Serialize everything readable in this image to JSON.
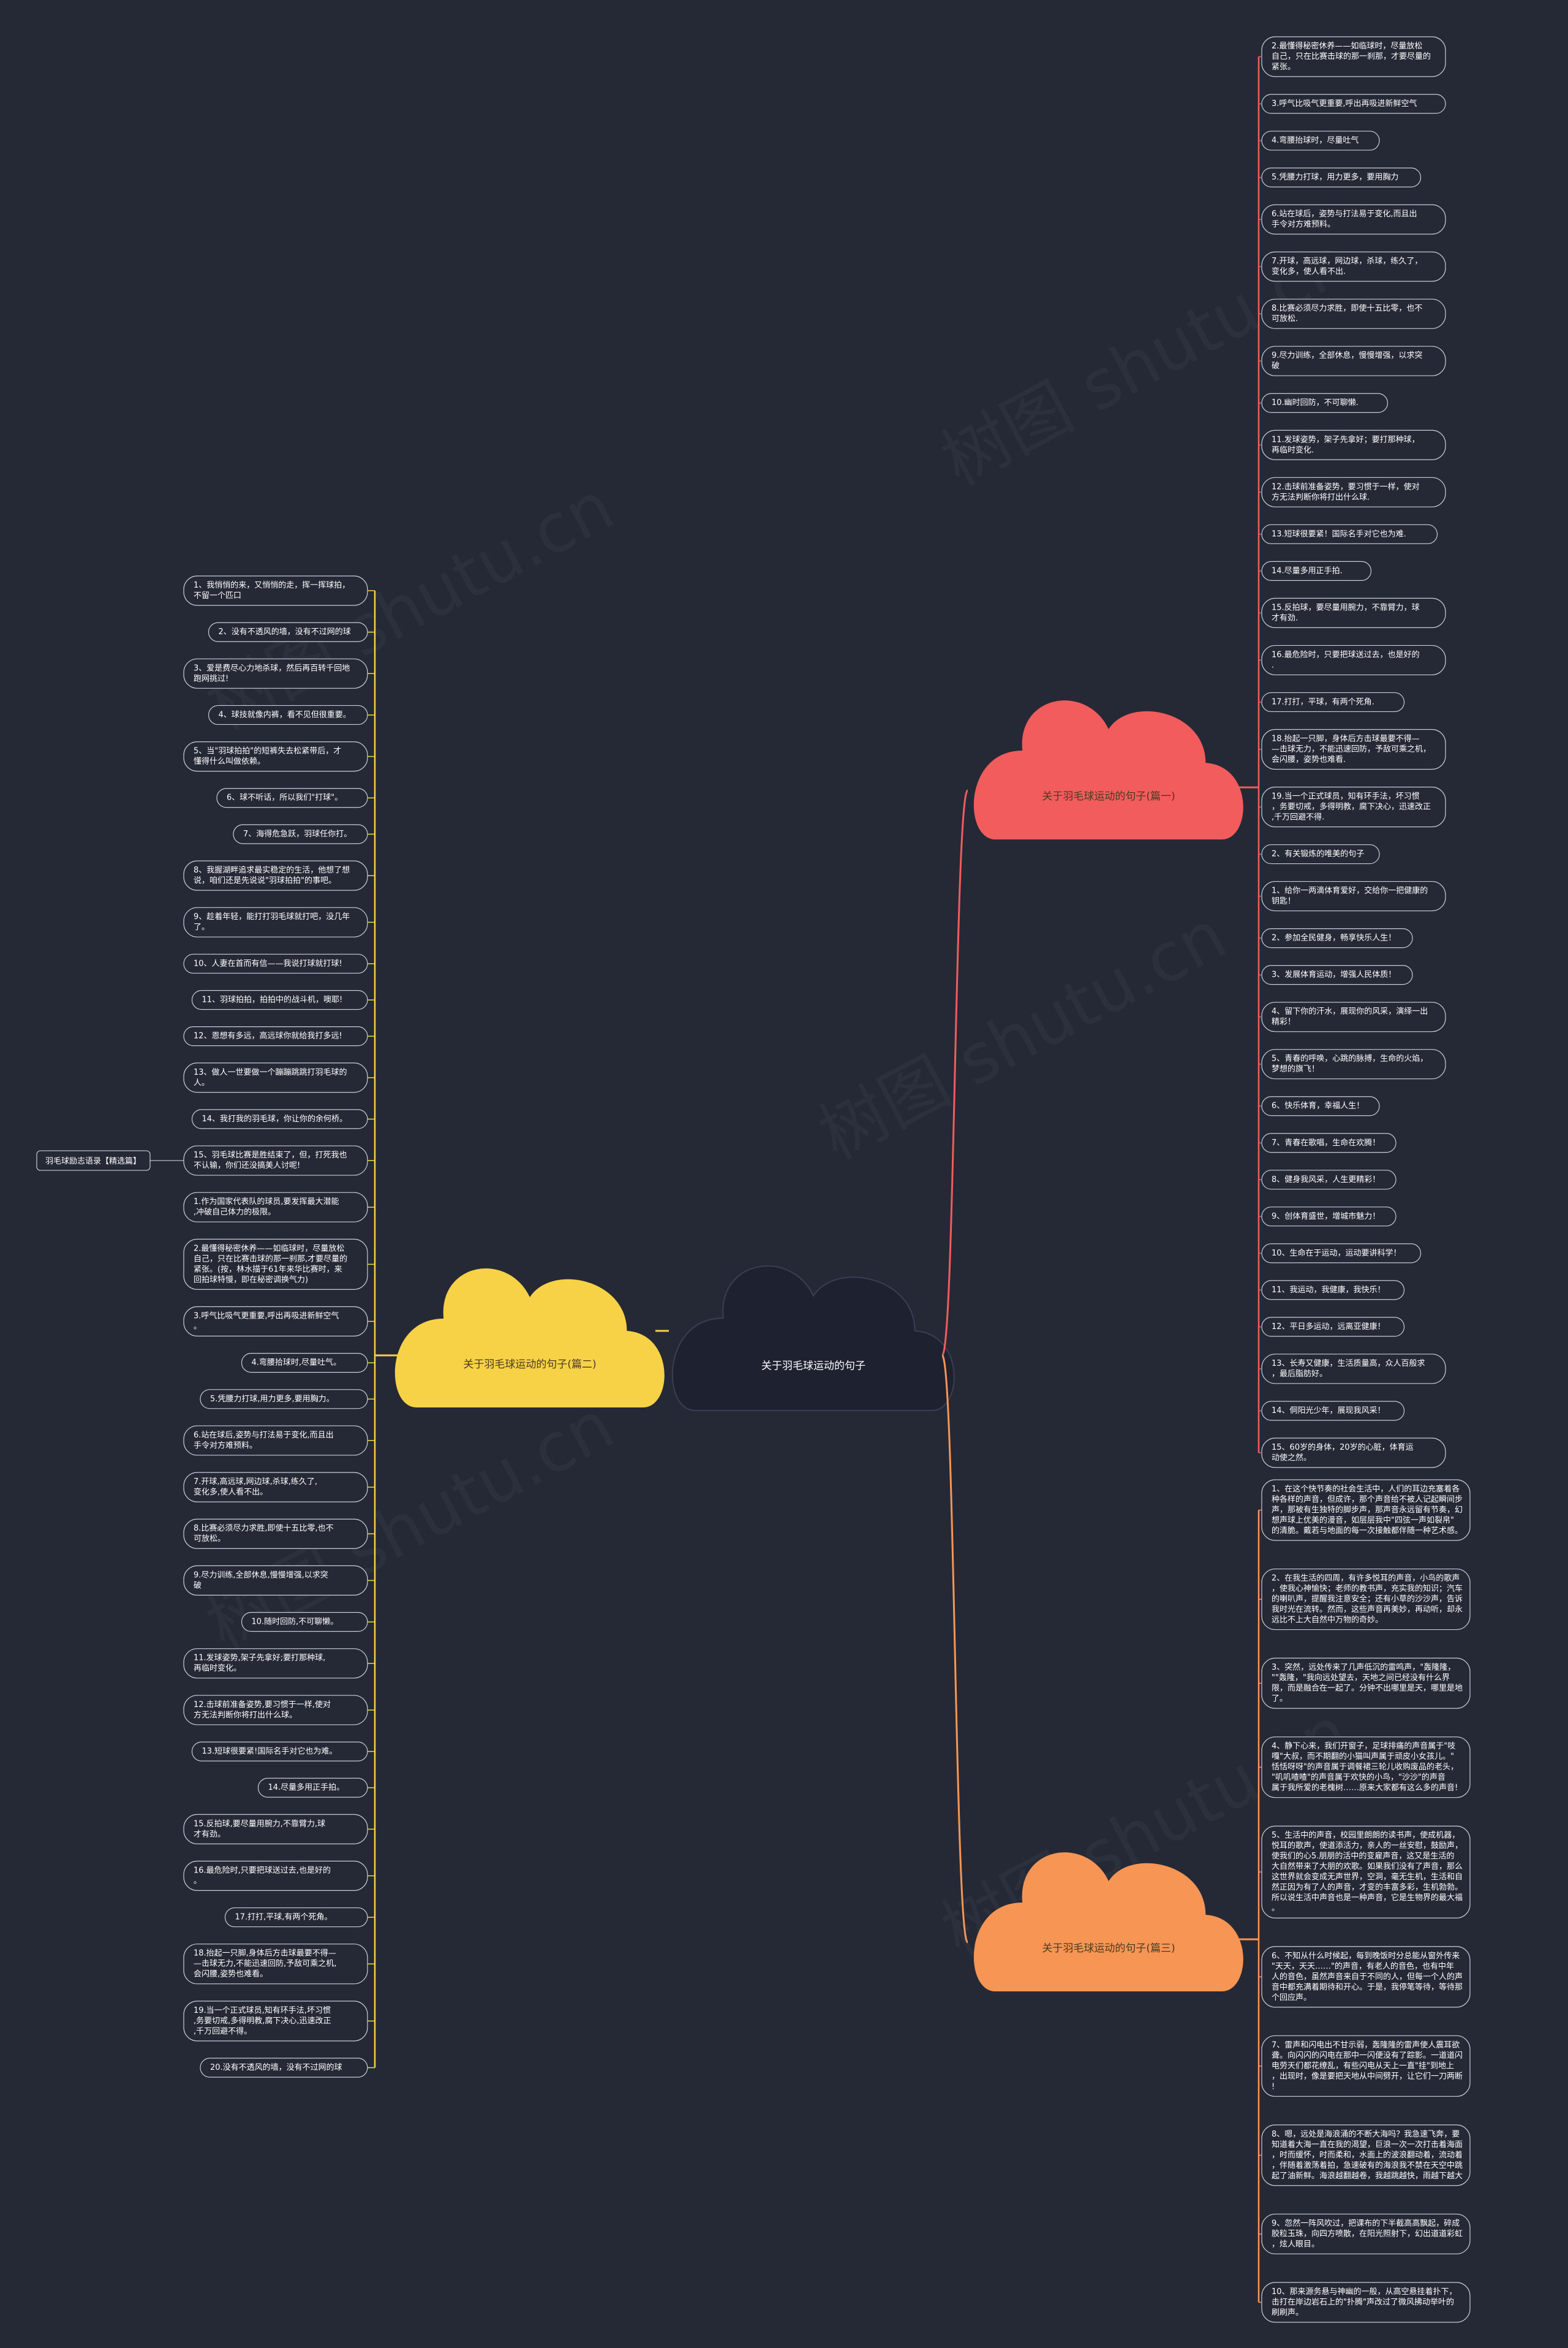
{
  "watermark": "树图 shutu.cn",
  "root": {
    "label": "关于羽毛球运动的句子",
    "color": "#1e2230"
  },
  "colors": {
    "red": "#f25c5c",
    "yellow": "#f7d247",
    "orange": "#f79654",
    "background": "#252936"
  },
  "branches": {
    "red": {
      "label": "关于羽毛球运动的句子(篇一)",
      "items": [
        "2.最懂得秘密休养——如临球时，尽量放松自己，只在比赛击球的那一刹那，才要尽量的紧张。",
        "3.呼气比吸气更重要,呼出再吸进新鲜空气",
        "4.弯腰抬球时，尽量吐气",
        "5.凭腰力打球，用力更多，要用胸力",
        "6.站在球后，姿势与打法易于变化,而且出手令对方难预料。",
        "7.开球，高远球，网边球，杀球，练久了，变化多，使人看不出.",
        "8.比赛必须尽力求胜，即使十五比零，也不可放松.",
        "9.尽力训练，全部休息，慢慢增强，以求突破",
        "10.幽时回防，不可聊懒.",
        "11.发球姿势，架子先拿好；要打那种球，再临时变化.",
        "12.击球前准备姿势，要习惯于一样，使对方无法判断你将打出什么球.",
        "13.短球很要紧！国际名手对它也为难.",
        "14.尽量多用正手拍.",
        "15.反拍球，要尽量用腕力，不靠臂力，球才有劲.",
        "16.最危险时，只要把球送过去，也是好的.",
        "17.打打，平球，有两个死角.",
        "18.抬起一只脚，身体后方击球最要不得——击球无力，不能迅速回防，予敌可乘之机，会闪腰，姿势也难看.",
        "19.当一个正式球员，知有环手法，坏习惯，务要切戒，多得明教，腐下决心，迅速改正,千万回避不得.",
        "2、有关锻炼的唯美的句子",
        "1、给你一两滴体育爱好，交给你一把健康的钥匙！",
        "2、参加全民健身，畅享快乐人生！",
        "3、发展体育运动，增强人民体质！",
        "4、留下你的汗水，展现你的风采，演绎一出精彩！",
        "5、青春的呼唤，心跳的脉搏，生命的火焰，梦想的旗飞！",
        "6、快乐体育，幸福人生！",
        "7、青春在歌唱，生命在欢腾！",
        "8、健身我风采，人生更精彩！",
        "9、创体育盛世，增城市魅力！",
        "10、生命在于运动，运动要讲科学！",
        "11、我运动，我健康，我快乐！",
        "12、平日多运动，远离亚健康！",
        "13、长寿又健康，生活质量高，众人百般求，最后脂肪好。",
        "14、侗阳光少年，展现我风采！",
        "15、60岁的身体，20岁的心脏，体育运动使之然。"
      ]
    },
    "yellow": {
      "label": "关于羽毛球运动的句子(篇二)",
      "items": [
        "1、我悄悄的来，又悄悄的走，挥一挥球拍，不留一个匹口",
        "2、没有不透风的墙，没有不过网的球",
        "3、爱是费尽心力地杀球，然后再百转千回地跑网挑过!",
        "4、球技就像内裤，看不见但很重要。",
        "5、当\"羽球拍拍\"的短裤失去松紧带后，才懂得什么叫做依赖。",
        "6、球不听话，所以我们\"打球\"。",
        "7、海得危急跃，羽球任你打。",
        "8、我握湖畔追求最实稳定的生活，他想了想说，咱们还是先说说\"羽球拍拍\"的事吧。",
        "9、趁着年轻，能打打羽毛球就打吧，没几年了。",
        "10、人妻在首而有信——我说打球就打球!",
        "11、羽球拍拍，拍拍中的战斗机，噢耶!",
        "12、恩想有多远，高远球你就给我打多远!",
        "13、做人一世要做一个蹦蹦跳跳打羽毛球的人。",
        "14、我打我的羽毛球，你让你的余何桥。",
        "15、羽毛球比赛是胜结束了，但，打死我也不认输，你们还没搞美人讨呢!",
        "1.作为国家代表队的球员,要发挥最大潜能,冲破自己体力的极限。",
        "2.最懂得秘密休养——如临球时，尽量放松自己，只在比赛击球的那一刹那,才要尽量的紧张。(按，林水描于61年来华比赛时，来回拍球特慢，即在秘密调换气力)",
        "3.呼气比吸气更重要,呼出再吸进新鲜空气。",
        "4.弯腰拾球时,尽量吐气。",
        "5.凭腰力打球,用力更多,要用胸力。",
        "6.站在球后,姿势与打法易于变化,而且出手令对方难预料。",
        "7.开球,高远球,网边球,杀球,练久了,变化多,使人看不出。",
        "8.比赛必须尽力求胜,即使十五比零,也不可放松。",
        "9.尽力训练,全部休息,慢慢增强,以求突破",
        "10.随时回防,不可聊懒。",
        "11.发球姿势,架子先拿好;要打那种球,再临时变化。",
        "12.击球前准备姿势,要习惯于一样,使对方无法判断你将打出什么球。",
        "13.短球很要紧!国际名手对它也为难。",
        "14.尽量多用正手拍。",
        "15.反拍球,要尽量用腕力,不靠臂力,球才有劲。",
        "16.最危险时,只要把球送过去,也是好的。",
        "17.打打,平球,有两个死角。",
        "18.抬起一只脚,身体后方击球最要不得——击球无力,不能迅速回防,予敌可乘之机,会闪腰,姿势也难看。",
        "19.当一个正式球员,知有环手法,坏习惯,务要切戒,多得明教,腐下决心,迅速改正,千万回避不得。",
        "20.没有不透风的墙，没有不过网的球"
      ],
      "side_tag_index": 14,
      "side_tag": "羽毛球励志语录【精选篇】"
    },
    "orange": {
      "label": "关于羽毛球运动的句子(篇三)",
      "items": [
        "1、在这个快节奏的社会生活中，人们的耳边充塞着各种各样的声音，但成许，那个声音给不被人记起瞬间步声，那被有生独特的脚步声，那声音永远留有节奏，幻想声球上优美的漫音，如层层我中\"四弦一声如裂帛\"的清脆。戴若与地面的每一次接触都伴随一种艺术感。",
        "2、在我生活的四周，有许多悦耳的声音，小鸟的歌声，使我心神愉快；老师的教书声，充实我的知识；汽车的喇叭声，提醒我注意安全；还有小草的沙沙声，告诉我时光在流转。然而，这些声音再美妙，再动听，却永远比不上大自然中万物的奇妙。",
        "3、突然，远处传来了几声低沉的雷鸣声，\"轰隆隆，\"\"轰隆，\"我向远处望去，天地之间已经没有什么界限，而是融合在一起了。分钟不出哪里是天，哪里是地了。",
        "4、静下心来，我们开窗子，足球排痛的声音属于\"吱嘎\"大叔，而不期翻的小猫叫声属于顽皮小女孩儿。\"恬恬呀呀\"的声音属于调餐裙三轮儿收购废品的老头，\"叽叽喳喳\"的声音属于欢快的小鸟，\"沙沙\"的声音属于我所爱的老槐树……原来大家都有这么多的声音!",
        "5、生活中的声音，校园里朗朗的读书声，使成机器，悦耳的歌声，使道添活力，亲人的一丝安慰，鼓励声，使我们的心5.朋朋的活中的变雇声音，这又是生活的大自然带来了大朋的欢歌。如果我们没有了声音，那么这世界就会变成无声世界，空洞，毫无生机，生活和自然正因为有了人的声音，才变的丰富多彩，生机勃勃。所以说生活中声音也是一种声音，它是生物界的最大福。",
        "6、不知从什么时候起，每到晚饭时分总能从窗外传来\"天天，天天……\"的声音，有老人的音色，也有中年人的音色，虽然声音来自于不同的人，但每一个人的声音中都充满着期待和开心。于是，我停笔等待，等待那个回应声。",
        "7、雷声和闪电出不甘示弱，轰隆隆的雷声使人震耳欲聋。向闪闪的闪电在那中一闪便没有了踪影。一道道闪电劳天们都花缭乱，有些闪电从天上一直\"挂\"到地上，出现时，像是要把天地从中间劈开，让它们一刀两断!",
        "8、嗯，远处是海浪涌的不断大海吗？我急速飞奔，要知道着大海一直在我的渴望，巨浪一次一次打击着海面，时而缓怀，时而柔和，水面上的波浪翻动着，流动着，伴随着激荡着拍，急速破有的海浪我不禁在天空中跳起了油新鲜。海浪越翻越卷，我越跳越快，雨越下越大",
        "9、忽然一阵风吹过，把课布的下半截高高飘起，碎成胶粒玉珠，向四方喷散，在阳光照射下，幻出道道彩虹，炫人眼目。",
        "10、那来源务悬与神幽的一般，从高空悬挂着扑下，击打在岸边岩石上的\"扑腾\"声改过了微风拂动举叶的刷刷声。"
      ]
    }
  }
}
